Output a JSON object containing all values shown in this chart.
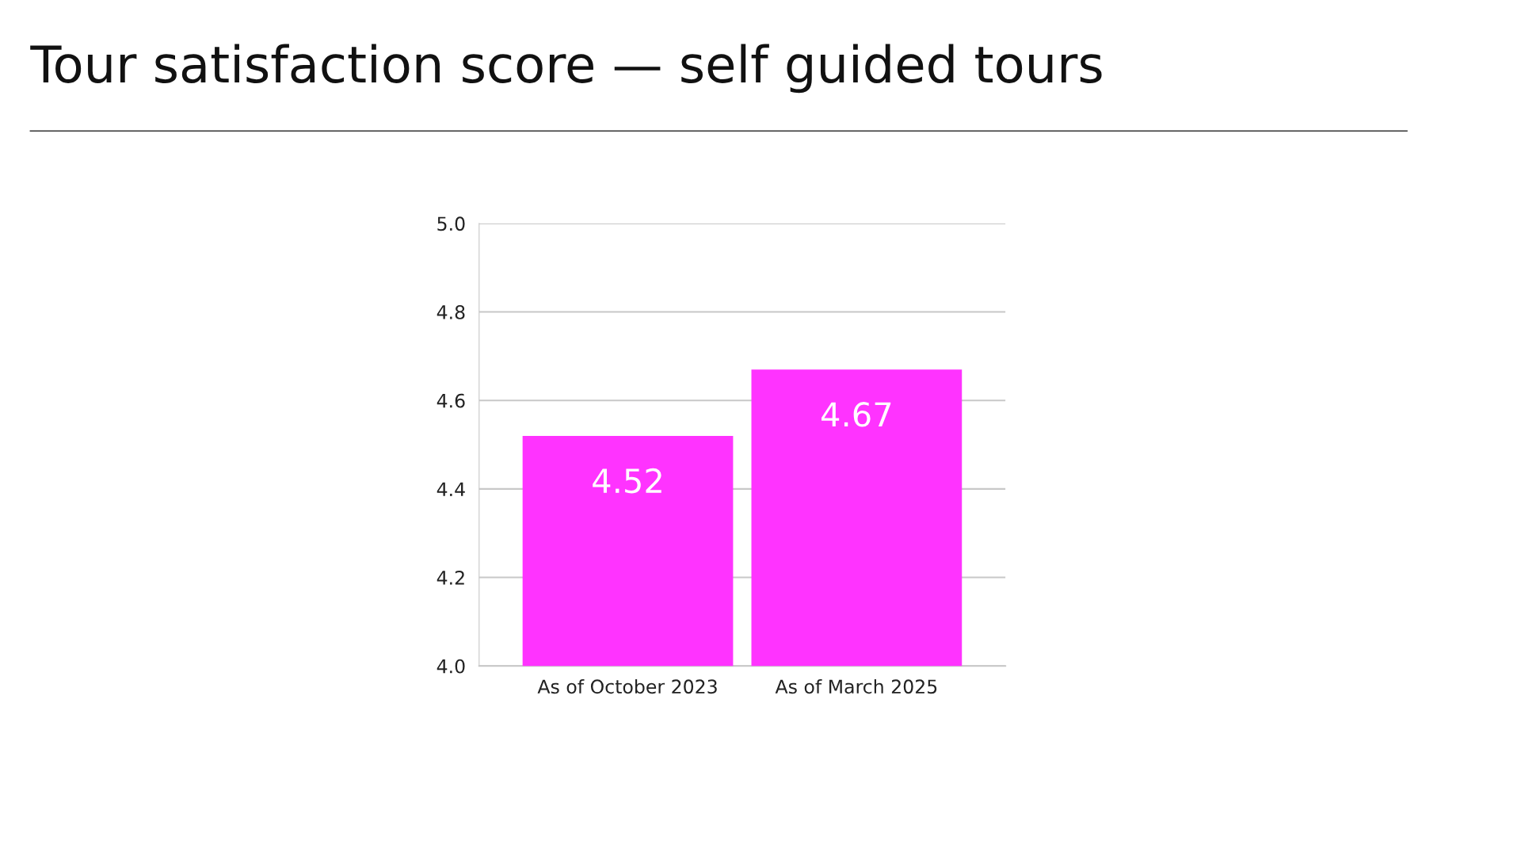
{
  "chart_data": {
    "type": "bar",
    "title": "Tour satisfaction score — self guided tours",
    "categories": [
      "As of October 2023",
      "As of March 2025"
    ],
    "values": [
      4.52,
      4.67
    ],
    "color": "#ff33ff",
    "ylim": [
      4.0,
      5.0
    ],
    "yticks": [
      {
        "value": 4.0,
        "label": "4.0"
      },
      {
        "value": 4.2,
        "label": "4.2"
      },
      {
        "value": 4.4,
        "label": "4.4"
      },
      {
        "value": 4.6,
        "label": "4.6"
      },
      {
        "value": 4.8,
        "label": "4.8"
      },
      {
        "value": 5.0,
        "label": "5.0"
      }
    ],
    "grid": "y",
    "data_labels": true
  }
}
